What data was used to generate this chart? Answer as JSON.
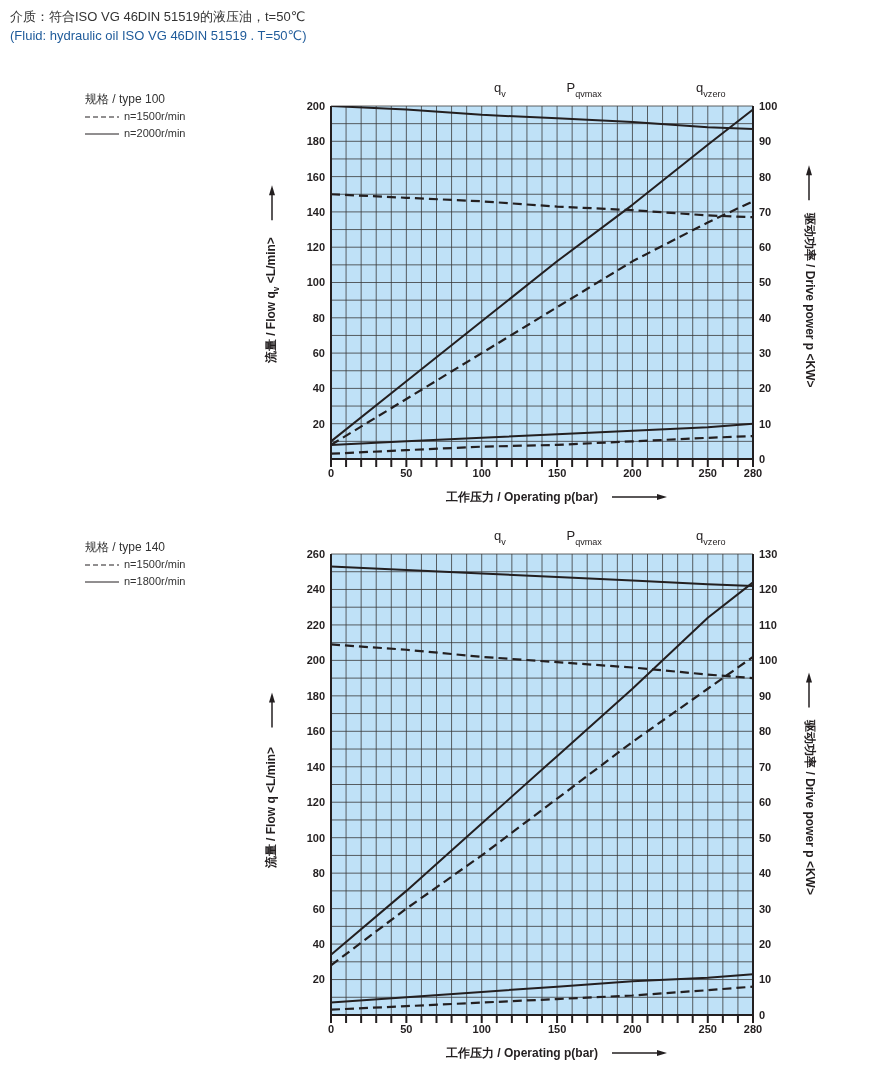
{
  "chart_data": [
    {
      "type": "line",
      "title": "介质：符合ISO VG 46DIN 51519的液压油，t=50℃",
      "subtitle": "(Fluid: hydraulic oil ISO VG 46DIN 51519 . T=50℃)",
      "legend_title": "规格 / type 100",
      "xlabel": "工作压力 / Operating p(bar)",
      "ylabel": "流量 / Flow q$_{v}$ <L/min>",
      "y2label": "驱动功率 / Drive power p <KW>",
      "x": [
        0,
        50,
        100,
        150,
        200,
        250,
        280
      ],
      "series": [
        {
          "name": "n=2000r/min",
          "color": "#231f20",
          "line_style": "solid",
          "values": [
            200,
            198,
            195,
            193,
            191,
            188,
            187
          ]
        },
        {
          "name": "n=1500r/min",
          "color": "#231f20",
          "line_style": "dashed",
          "values": [
            150,
            148,
            146,
            143,
            141,
            138,
            137
          ]
        },
        {
          "color": "#231f20",
          "line_style": "solid",
          "axis": "y2",
          "values": [
            5,
            22,
            39,
            56,
            72,
            89,
            99
          ]
        },
        {
          "color": "#231f20",
          "line_style": "dashed",
          "axis": "y2",
          "values": [
            4,
            17,
            30,
            43,
            56,
            67,
            73
          ]
        },
        {
          "color": "#231f20",
          "line_style": "solid",
          "axis": "y2",
          "values": [
            4,
            5,
            6,
            7,
            8,
            9,
            10
          ]
        },
        {
          "color": "#231f20",
          "line_style": "dashed",
          "axis": "y2",
          "values": [
            1.5,
            2.5,
            3.5,
            4,
            5,
            6,
            6.5
          ]
        }
      ],
      "annotations": [
        "q$_{v}$",
        "P$_{qvmax}$",
        "q$_{vzero}$"
      ],
      "xlim": [
        0,
        280
      ],
      "xticks": [
        0,
        {
          "value": 10,
          "label": null
        },
        {
          "value": 20,
          "label": null
        },
        {
          "value": 30,
          "label": null
        },
        {
          "value": 40,
          "label": null
        },
        50,
        {
          "value": 60,
          "label": null
        },
        {
          "value": 70,
          "label": null
        },
        {
          "value": 80,
          "label": null
        },
        {
          "value": 90,
          "label": null
        },
        100,
        {
          "value": 110,
          "label": null
        },
        {
          "value": 120,
          "label": null
        },
        {
          "value": 130,
          "label": null
        },
        {
          "value": 140,
          "label": null
        },
        150,
        {
          "value": 160,
          "label": null
        },
        {
          "value": 170,
          "label": null
        },
        {
          "value": 180,
          "label": null
        },
        {
          "value": 190,
          "label": null
        },
        200,
        {
          "value": 210,
          "label": null
        },
        {
          "value": 220,
          "label": null
        },
        {
          "value": 230,
          "label": null
        },
        {
          "value": 240,
          "label": null
        },
        250,
        {
          "value": 260,
          "label": null
        },
        {
          "value": 270,
          "label": null
        },
        280
      ],
      "ylim": [
        0,
        200
      ],
      "yticks": [
        {
          "value": 0,
          "label": null
        },
        {
          "value": 10,
          "label": null
        },
        20,
        {
          "value": 30,
          "label": null
        },
        40,
        {
          "value": 50,
          "label": null
        },
        60,
        {
          "value": 70,
          "label": null
        },
        80,
        {
          "value": 90,
          "label": null
        },
        100,
        {
          "value": 110,
          "label": null
        },
        120,
        {
          "value": 130,
          "label": null
        },
        140,
        {
          "value": 150,
          "label": null
        },
        160,
        {
          "value": 170,
          "label": null
        },
        180,
        {
          "value": 190,
          "label": null
        },
        200
      ],
      "y2lim": [
        0,
        100
      ],
      "y2ticks": [
        0,
        10,
        20,
        30,
        40,
        50,
        60,
        70,
        80,
        90,
        100
      ],
      "grid": true,
      "legend": "top left",
      "marker": "none"
    },
    {
      "type": "line",
      "legend_title": "规格 / type 140",
      "xlabel": "工作压力 / Operating p(bar)",
      "ylabel": "流量 / Flow q <L/min>",
      "y2label": "驱动功率 / Drive power p <KW>",
      "x": [
        0,
        50,
        100,
        150,
        200,
        250,
        280
      ],
      "series": [
        {
          "name": "n=1800r/min",
          "color": "#231f20",
          "line_style": "solid",
          "values": [
            253,
            251,
            249,
            247,
            245,
            243,
            242
          ]
        },
        {
          "name": "n=1500r/min",
          "color": "#231f20",
          "line_style": "dashed",
          "values": [
            209,
            206,
            202,
            199,
            196,
            192,
            190
          ]
        },
        {
          "color": "#231f20",
          "line_style": "solid",
          "axis": "y2",
          "values": [
            17,
            35,
            54,
            73,
            92,
            112,
            122
          ]
        },
        {
          "color": "#231f20",
          "line_style": "dashed",
          "axis": "y2",
          "values": [
            14,
            30,
            45,
            61,
            77,
            92,
            101
          ]
        },
        {
          "color": "#231f20",
          "line_style": "solid",
          "axis": "y2",
          "values": [
            3.5,
            5,
            6.5,
            8,
            9.5,
            10.5,
            11.5
          ]
        },
        {
          "color": "#231f20",
          "line_style": "dashed",
          "axis": "y2",
          "values": [
            1.5,
            2.5,
            3.5,
            4.5,
            5.5,
            7,
            8
          ]
        }
      ],
      "annotations": [
        "q$_{v}$",
        "P$_{qvmax}$",
        "q$_{vzero}$"
      ],
      "xlim": [
        0,
        280
      ],
      "xticks": [
        0,
        {
          "value": 10,
          "label": null
        },
        {
          "value": 20,
          "label": null
        },
        {
          "value": 30,
          "label": null
        },
        {
          "value": 40,
          "label": null
        },
        50,
        {
          "value": 60,
          "label": null
        },
        {
          "value": 70,
          "label": null
        },
        {
          "value": 80,
          "label": null
        },
        {
          "value": 90,
          "label": null
        },
        100,
        {
          "value": 110,
          "label": null
        },
        {
          "value": 120,
          "label": null
        },
        {
          "value": 130,
          "label": null
        },
        {
          "value": 140,
          "label": null
        },
        150,
        {
          "value": 160,
          "label": null
        },
        {
          "value": 170,
          "label": null
        },
        {
          "value": 180,
          "label": null
        },
        {
          "value": 190,
          "label": null
        },
        200,
        {
          "value": 210,
          "label": null
        },
        {
          "value": 220,
          "label": null
        },
        {
          "value": 230,
          "label": null
        },
        {
          "value": 240,
          "label": null
        },
        250,
        {
          "value": 260,
          "label": null
        },
        {
          "value": 270,
          "label": null
        },
        280
      ],
      "ylim": [
        0,
        260
      ],
      "yticks": [
        {
          "value": 0,
          "label": null
        },
        {
          "value": 10,
          "label": null
        },
        20,
        {
          "value": 30,
          "label": null
        },
        40,
        {
          "value": 50,
          "label": null
        },
        60,
        {
          "value": 70,
          "label": null
        },
        80,
        {
          "value": 90,
          "label": null
        },
        100,
        {
          "value": 110,
          "label": null
        },
        120,
        {
          "value": 130,
          "label": null
        },
        140,
        {
          "value": 150,
          "label": null
        },
        160,
        {
          "value": 170,
          "label": null
        },
        180,
        {
          "value": 190,
          "label": null
        },
        200,
        {
          "value": 210,
          "label": null
        },
        220,
        {
          "value": 230,
          "label": null
        },
        240,
        {
          "value": 250,
          "label": null
        },
        260
      ],
      "y2lim": [
        0,
        130
      ],
      "y2ticks": [
        0,
        10,
        20,
        30,
        40,
        50,
        60,
        70,
        80,
        90,
        100,
        110,
        120,
        130
      ],
      "grid": true,
      "legend": "top left",
      "marker": "none"
    }
  ]
}
